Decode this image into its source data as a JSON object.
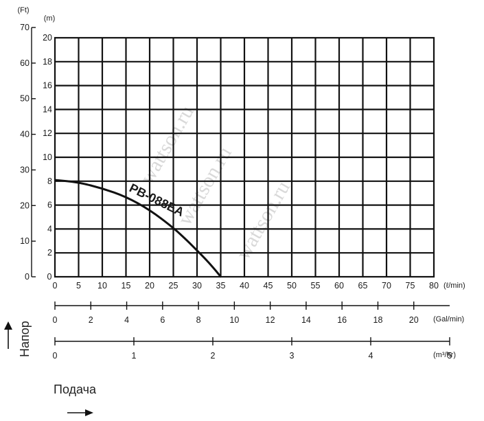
{
  "chart_data": {
    "type": "line",
    "title": "",
    "left_axis": {
      "unit": "(Ft)",
      "ticks": [
        0,
        10,
        20,
        30,
        40,
        50,
        60,
        70
      ],
      "ylim": [
        0,
        70
      ]
    },
    "y_axis": {
      "unit": "(m)",
      "ticks": [
        2,
        4,
        6,
        8,
        10,
        12,
        14,
        16,
        18,
        20
      ],
      "zero_label": "0",
      "ylim": [
        0,
        20
      ]
    },
    "x_axes": [
      {
        "unit": "(ℓ/min)",
        "ticks": [
          0,
          5,
          10,
          15,
          20,
          25,
          30,
          35,
          40,
          45,
          50,
          55,
          60,
          65,
          70,
          75,
          80
        ],
        "range": [
          0,
          80
        ]
      },
      {
        "unit": "(Gal/min)",
        "ticks": [
          0,
          2,
          4,
          6,
          8,
          10,
          12,
          14,
          16,
          18,
          20
        ],
        "range": [
          0,
          22
        ]
      },
      {
        "unit": "(m³/hr)",
        "ticks": [
          0,
          1,
          2,
          3,
          4,
          5
        ],
        "range": [
          0,
          5
        ]
      }
    ],
    "grid": true,
    "series": [
      {
        "name": "PB-088EA",
        "x": [
          0,
          5,
          10,
          15,
          20,
          25,
          28,
          30,
          32,
          34,
          35
        ],
        "y": [
          8.1,
          7.9,
          7.4,
          6.7,
          5.6,
          4.1,
          3.0,
          2.2,
          1.4,
          0.5,
          0
        ]
      }
    ]
  },
  "labels": {
    "head": "Напор",
    "flow": "Подача",
    "watermarks": [
      "wattson.ru",
      "wattson.ru",
      "wattson.ru"
    ]
  }
}
